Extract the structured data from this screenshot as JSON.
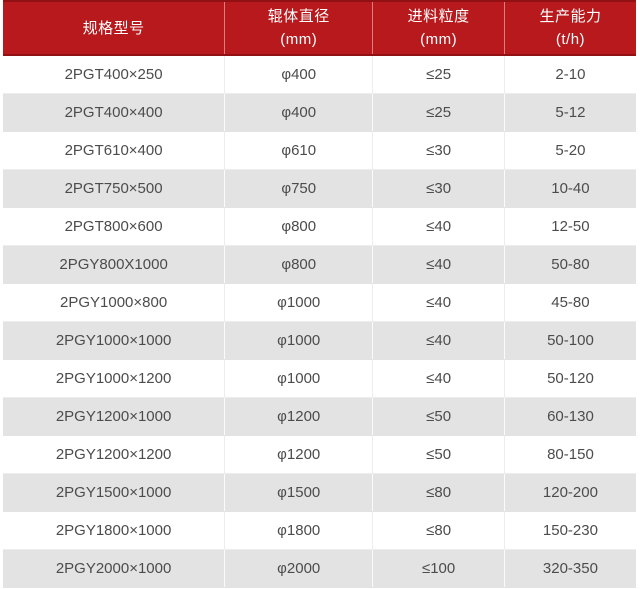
{
  "chart_data": {
    "type": "table",
    "title": "",
    "columns": [
      {
        "label": "规格型号",
        "unit": ""
      },
      {
        "label": "辊体直径",
        "unit": "(mm)"
      },
      {
        "label": "进料粒度",
        "unit": "(mm)"
      },
      {
        "label": "生产能力",
        "unit": "(t/h)"
      }
    ],
    "rows": [
      [
        "2PGT400×250",
        "φ400",
        "≤25",
        "2-10"
      ],
      [
        "2PGT400×400",
        "φ400",
        "≤25",
        "5-12"
      ],
      [
        "2PGT610×400",
        "φ610",
        "≤30",
        "5-20"
      ],
      [
        "2PGT750×500",
        "φ750",
        "≤30",
        "10-40"
      ],
      [
        "2PGT800×600",
        "φ800",
        "≤40",
        "12-50"
      ],
      [
        "2PGY800X1000",
        "φ800",
        "≤40",
        "50-80"
      ],
      [
        "2PGY1000×800",
        "φ1000",
        "≤40",
        "45-80"
      ],
      [
        "2PGY1000×1000",
        "φ1000",
        "≤40",
        "50-100"
      ],
      [
        "2PGY1000×1200",
        "φ1000",
        "≤40",
        "50-120"
      ],
      [
        "2PGY1200×1000",
        "φ1200",
        "≤50",
        "60-130"
      ],
      [
        "2PGY1200×1200",
        "φ1200",
        "≤50",
        "80-150"
      ],
      [
        "2PGY1500×1000",
        "φ1500",
        "≤80",
        "120-200"
      ],
      [
        "2PGY1800×1000",
        "φ1800",
        "≤80",
        "150-230"
      ],
      [
        "2PGY2000×1000",
        "φ2000",
        "≤100",
        "320-350"
      ]
    ],
    "layout": {
      "striped": true,
      "first_stripe": "white",
      "alignment": "center"
    },
    "colors": {
      "header_bg": "#b7191d",
      "header_border": "#911013",
      "header_text": "#ffffff",
      "row_bg": "#ffffff",
      "row_alt_bg": "#e3e3e3",
      "body_text": "#4c4c4c"
    }
  }
}
